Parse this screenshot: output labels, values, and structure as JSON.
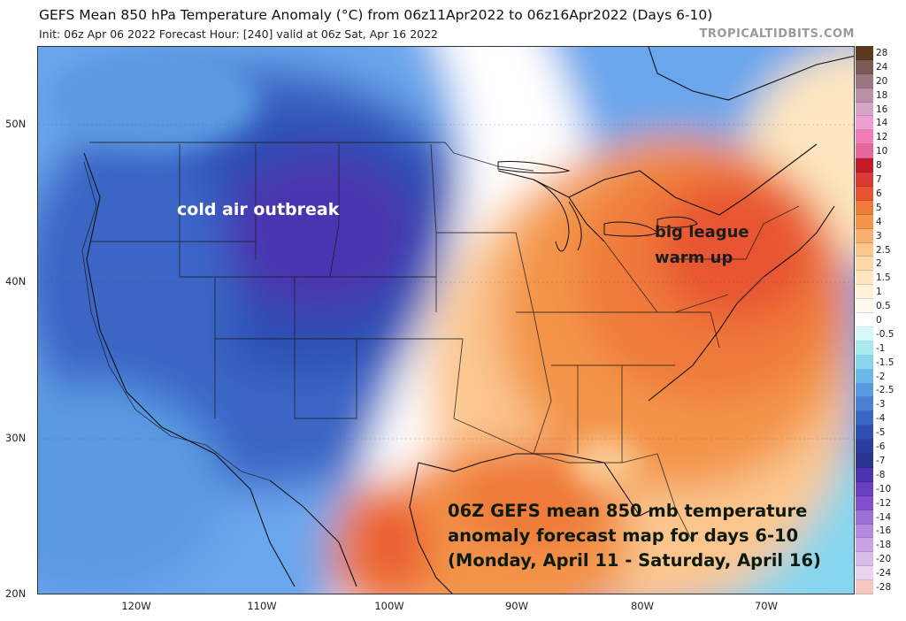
{
  "header": {
    "title": "GEFS Mean 850 hPa Temperature Anomaly (°C) from 06z11Apr2022 to 06z16Apr2022 (Days 6-10)",
    "subtitle": "Init: 06z Apr 06 2022   Forecast Hour: [240]   valid at 06z Sat, Apr 16 2022",
    "brand": "TROPICALTIDBITS.COM"
  },
  "map": {
    "lat_labels": [
      "50N",
      "40N",
      "30N",
      "20N"
    ],
    "lon_labels": [
      "120W",
      "110W",
      "100W",
      "90W",
      "80W",
      "70W"
    ],
    "annotations": {
      "cold": "cold air outbreak",
      "warm_line1": "big league",
      "warm_line2": "warm up",
      "caption_line1": "06Z GEFS mean 850 mb temperature",
      "caption_line2": "anomaly forecast map for days 6-10",
      "caption_line3": "(Monday, April 11 - Saturday, April 16)"
    },
    "colors": {
      "cold_deep": "#3a2fa8",
      "cold": "#2f5cc9",
      "cool": "#6aa6ec",
      "neutral": "#ffffff",
      "warm": "#f6b77c",
      "hot": "#e2542f"
    }
  },
  "colorbar": {
    "levels": [
      "28",
      "24",
      "20",
      "18",
      "16",
      "14",
      "12",
      "10",
      "8",
      "7",
      "6",
      "5",
      "4",
      "3",
      "2.5",
      "2",
      "1.5",
      "1",
      "0.5",
      "0",
      "-0.5",
      "-1",
      "-1.5",
      "-2",
      "-2.5",
      "-3",
      "-4",
      "-5",
      "-6",
      "-7",
      "-8",
      "-10",
      "-12",
      "-14",
      "-16",
      "-18",
      "-20",
      "-24",
      "-28"
    ],
    "colors": [
      "#5c3a1e",
      "#7a5a52",
      "#9a7882",
      "#b990a8",
      "#d6a6c6",
      "#ee9fd2",
      "#f07cb8",
      "#e8689c",
      "#c21a28",
      "#d63a30",
      "#e85430",
      "#ef7a3a",
      "#f39448",
      "#f8b070",
      "#fbc68e",
      "#fcd8a8",
      "#fde6c0",
      "#fff2d8",
      "#fffaf0",
      "#ffffff",
      "#d4f8f8",
      "#a8eaf0",
      "#86d6ee",
      "#6ab8ea",
      "#5a9ae2",
      "#4a7fd4",
      "#3a66c6",
      "#2f4fb4",
      "#2a3ea2",
      "#2a3490",
      "#4a34b0",
      "#6a3ec0",
      "#8250cc",
      "#9a70d4",
      "#b48ade",
      "#c8a4e4",
      "#d8bce8",
      "#e8d4f0",
      "#f4c8c0"
    ]
  }
}
